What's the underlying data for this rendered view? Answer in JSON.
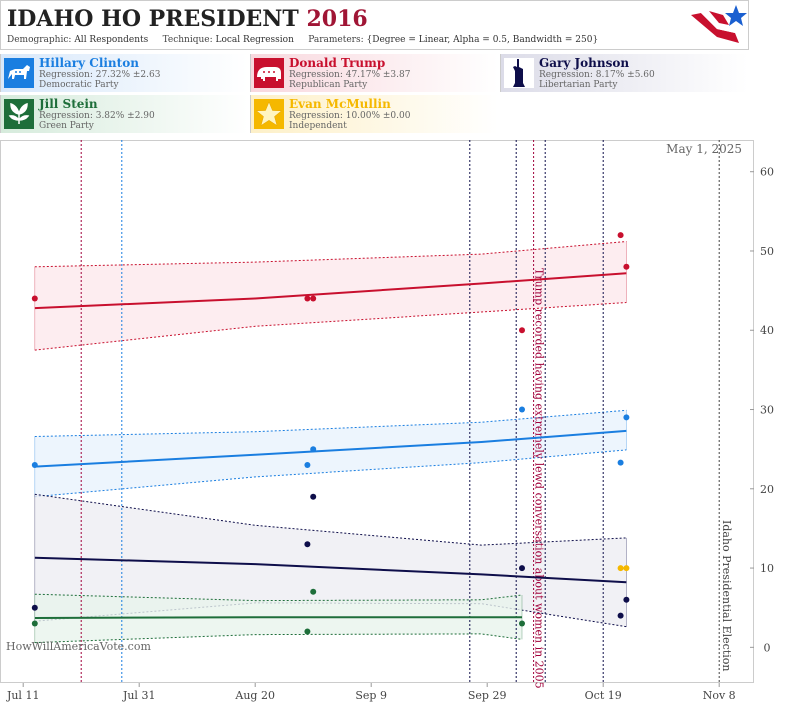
{
  "header": {
    "title_main": "IDAHO",
    "title_rest": "HO PRESIDENT",
    "title_year": "2016",
    "demographic_label": "Demographic:",
    "demographic_value": "All Respondents",
    "technique_label": "Technique:",
    "technique_value": "Local Regression",
    "parameters_label": "Parameters:",
    "parameters_value": "{Degree = Linear, Alpha = 0.5, Bandwidth = 250}"
  },
  "candidates": [
    {
      "name": "Hillary Clinton",
      "regression": "Regression: 27.32% ±2.63",
      "party": "Democratic Party",
      "color": "#1a7ee0",
      "icon": "donkey-icon"
    },
    {
      "name": "Donald Trump",
      "regression": "Regression: 47.17% ±3.87",
      "party": "Republican Party",
      "color": "#c8102e",
      "icon": "elephant-icon"
    },
    {
      "name": "Gary Johnson",
      "regression": "Regression: 8.17% ±5.60",
      "party": "Libertarian Party",
      "color": "#0e0e4a",
      "icon": "statue-of-liberty-icon"
    },
    {
      "name": "Jill Stein",
      "regression": "Regression: 3.82% ±2.90",
      "party": "Green Party",
      "color": "#1e6e3a",
      "icon": "leaf-icon"
    },
    {
      "name": "Evan McMullin",
      "regression": "Regression: 10.00% ±0.00",
      "party": "Independent",
      "color": "#f5b800",
      "icon": "star-icon"
    }
  ],
  "chart_data": {
    "type": "line",
    "date_stamp": "May 1, 2025",
    "watermark": "HowWillAmericaVote.com",
    "x_ticks": [
      "Jul 11",
      "Jul 31",
      "Aug 20",
      "Sep 9",
      "Sep 29",
      "Oct 19",
      "Nov 8"
    ],
    "x_range": [
      "2016-07-07",
      "2016-11-14"
    ],
    "ylim": [
      -4.5,
      64
    ],
    "y_ticks": [
      0,
      10,
      20,
      30,
      40,
      50,
      60
    ],
    "grid": false,
    "series": [
      {
        "name": "Donald Trump",
        "color": "#c8102e",
        "fill": "#fde8ec",
        "trend": [
          [
            "2016-07-13",
            42.8
          ],
          [
            "2016-08-20",
            44.0
          ],
          [
            "2016-09-28",
            45.9
          ],
          [
            "2016-10-23",
            47.2
          ]
        ],
        "upper": [
          [
            "2016-07-13",
            48.0
          ],
          [
            "2016-08-20",
            48.6
          ],
          [
            "2016-09-28",
            49.6
          ],
          [
            "2016-10-23",
            51.2
          ]
        ],
        "lower": [
          [
            "2016-07-13",
            37.5
          ],
          [
            "2016-08-20",
            40.5
          ],
          [
            "2016-09-28",
            42.3
          ],
          [
            "2016-10-23",
            43.5
          ]
        ],
        "points": [
          [
            "2016-07-13",
            44
          ],
          [
            "2016-08-29",
            44
          ],
          [
            "2016-08-30",
            44
          ],
          [
            "2016-10-05",
            40
          ],
          [
            "2016-10-22",
            52
          ],
          [
            "2016-10-23",
            48
          ]
        ]
      },
      {
        "name": "Hillary Clinton",
        "color": "#1a7ee0",
        "fill": "#e8f2fc",
        "trend": [
          [
            "2016-07-13",
            22.8
          ],
          [
            "2016-08-20",
            24.3
          ],
          [
            "2016-09-28",
            25.9
          ],
          [
            "2016-10-23",
            27.3
          ]
        ],
        "upper": [
          [
            "2016-07-13",
            26.6
          ],
          [
            "2016-08-20",
            27.2
          ],
          [
            "2016-09-28",
            28.4
          ],
          [
            "2016-10-23",
            29.9
          ]
        ],
        "lower": [
          [
            "2016-07-13",
            19.0
          ],
          [
            "2016-08-20",
            21.5
          ],
          [
            "2016-09-28",
            23.3
          ],
          [
            "2016-10-23",
            24.9
          ]
        ],
        "points": [
          [
            "2016-07-13",
            23
          ],
          [
            "2016-08-29",
            23
          ],
          [
            "2016-08-30",
            25
          ],
          [
            "2016-10-05",
            30
          ],
          [
            "2016-10-22",
            23.3
          ],
          [
            "2016-10-23",
            29
          ]
        ]
      },
      {
        "name": "Gary Johnson",
        "color": "#0e0e4a",
        "fill": "#ededf3",
        "trend": [
          [
            "2016-07-13",
            11.3
          ],
          [
            "2016-08-20",
            10.5
          ],
          [
            "2016-09-28",
            9.2
          ],
          [
            "2016-10-23",
            8.2
          ]
        ],
        "upper": [
          [
            "2016-07-13",
            19.3
          ],
          [
            "2016-08-20",
            15.4
          ],
          [
            "2016-09-28",
            12.9
          ],
          [
            "2016-10-23",
            13.8
          ]
        ],
        "lower": [
          [
            "2016-07-13",
            3.3
          ],
          [
            "2016-08-20",
            5.6
          ],
          [
            "2016-09-28",
            5.5
          ],
          [
            "2016-10-23",
            2.6
          ]
        ],
        "points": [
          [
            "2016-07-13",
            5
          ],
          [
            "2016-08-29",
            13
          ],
          [
            "2016-08-30",
            19
          ],
          [
            "2016-10-05",
            10
          ],
          [
            "2016-10-22",
            4
          ],
          [
            "2016-10-23",
            6
          ]
        ]
      },
      {
        "name": "Jill Stein",
        "color": "#1e6e3a",
        "fill": "#e9f4ec",
        "trend": [
          [
            "2016-07-13",
            3.7
          ],
          [
            "2016-08-20",
            3.8
          ],
          [
            "2016-09-28",
            3.8
          ],
          [
            "2016-10-05",
            3.8
          ]
        ],
        "upper": [
          [
            "2016-07-13",
            6.7
          ],
          [
            "2016-08-20",
            5.9
          ],
          [
            "2016-09-28",
            6.0
          ],
          [
            "2016-10-05",
            6.6
          ]
        ],
        "lower": [
          [
            "2016-07-13",
            0.6
          ],
          [
            "2016-08-20",
            1.6
          ],
          [
            "2016-09-28",
            1.7
          ],
          [
            "2016-10-05",
            1.0
          ]
        ],
        "points": [
          [
            "2016-07-13",
            3
          ],
          [
            "2016-08-29",
            2
          ],
          [
            "2016-08-30",
            7
          ],
          [
            "2016-10-05",
            3
          ]
        ]
      },
      {
        "name": "Evan McMullin",
        "color": "#f5b800",
        "fill": "none",
        "trend": [],
        "upper": [],
        "lower": [],
        "points": [
          [
            "2016-10-22",
            10
          ],
          [
            "2016-10-23",
            10
          ]
        ]
      }
    ],
    "events": [
      {
        "date": "2016-07-21",
        "color": "#a0003a",
        "label": ""
      },
      {
        "date": "2016-07-28",
        "color": "#1a7ee0",
        "label": ""
      },
      {
        "date": "2016-09-26",
        "color": "#0e0e4a",
        "label": ""
      },
      {
        "date": "2016-10-04",
        "color": "#0e0e4a",
        "label": ""
      },
      {
        "date": "2016-10-07",
        "color": "#a0003a",
        "label": "Trump recorded having extremely lewd conversation about women in 2005"
      },
      {
        "date": "2016-10-09",
        "color": "#0e0e4a",
        "label": ""
      },
      {
        "date": "2016-10-19",
        "color": "#0e0e4a",
        "label": ""
      },
      {
        "date": "2016-11-08",
        "color": "#444444",
        "label": "Idaho Presidential Election"
      }
    ]
  }
}
